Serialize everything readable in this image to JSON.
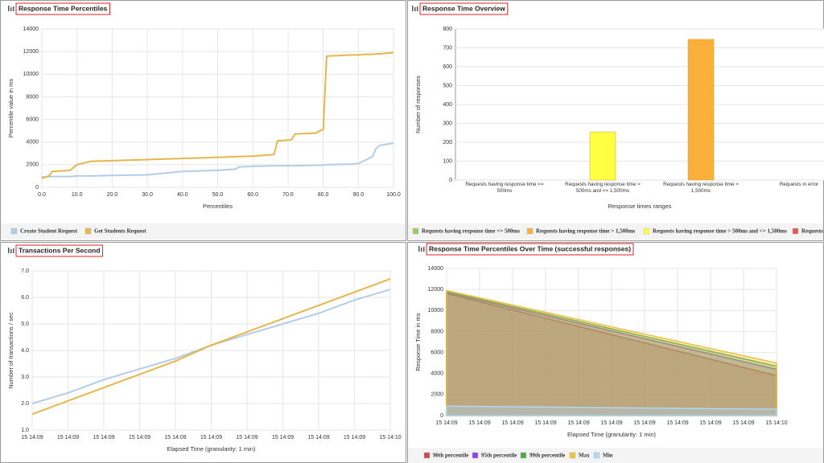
{
  "chart_data": [
    {
      "type": "line",
      "title": "Response Time Percentiles",
      "x_label": "Percentiles",
      "y_label": "Percentile value in ms",
      "x": [
        0,
        2,
        3,
        8,
        10,
        14,
        20,
        30,
        40,
        50,
        55,
        56,
        60,
        66,
        67,
        71,
        72,
        78,
        79,
        80,
        81,
        88,
        90,
        92,
        94,
        95,
        96,
        100
      ],
      "series": [
        {
          "name": "Create Student Request",
          "color": "#b3cde8",
          "values": [
            900,
            950,
            950,
            950,
            1000,
            1000,
            1050,
            1100,
            1400,
            1500,
            1600,
            1800,
            1850,
            1900,
            1900,
            1900,
            1900,
            1950,
            1950,
            1950,
            2000,
            2050,
            2100,
            2400,
            2700,
            3400,
            3700,
            3900
          ]
        },
        {
          "name": "Get Students Request",
          "color": "#e6b64a",
          "values": [
            800,
            1000,
            1400,
            1500,
            2000,
            2300,
            2350,
            2450,
            2550,
            2650,
            2700,
            2720,
            2750,
            2900,
            4100,
            4200,
            4700,
            4800,
            5000,
            5100,
            11600,
            11700,
            11700,
            11750,
            11750,
            11800,
            11800,
            11900
          ]
        }
      ],
      "xlim": [
        0,
        100
      ],
      "xticks": [
        {
          "value": 0,
          "label": "0.0"
        },
        {
          "value": 10,
          "label": "10.0"
        },
        {
          "value": 20,
          "label": "20.0"
        },
        {
          "value": 30,
          "label": "30.0"
        },
        {
          "value": 40,
          "label": "40.0"
        },
        {
          "value": 50,
          "label": "50.0"
        },
        {
          "value": 60,
          "label": "60.0"
        },
        {
          "value": 70,
          "label": "70.0"
        },
        {
          "value": 80,
          "label": "80.0"
        },
        {
          "value": 90,
          "label": "90.0"
        },
        {
          "value": 100,
          "label": "100.0"
        }
      ],
      "ylim": [
        0,
        14000
      ],
      "yticks": [
        0,
        2000,
        4000,
        6000,
        8000,
        10000,
        12000,
        14000
      ],
      "grid": true
    },
    {
      "type": "bar",
      "title": "Response Time Overview",
      "x_label": "Response times ranges",
      "y_label": "Number of responses",
      "categories": [
        "Requests having response time <= 500ms",
        "Requests having response time > 500ms and <= 1,500ms",
        "Requests having response time > 1,500ms",
        "Requests in error"
      ],
      "values": [
        0,
        255,
        745,
        0
      ],
      "colors": [
        "#9acd5a",
        "#ffff44",
        "#fbb03b",
        "#e8584a"
      ],
      "legend": [
        {
          "name": "Requests having response time <= 500ms",
          "color": "#9acd5a"
        },
        {
          "name": "Requests having response time > 1,500ms",
          "color": "#fbb03b"
        },
        {
          "name": "Requests having response time > 500ms and <= 1,500ms",
          "color": "#ffff44"
        },
        {
          "name": "Requests in error",
          "color": "#e8584a"
        }
      ],
      "ylim": [
        0,
        800
      ],
      "yticks": [
        0,
        100,
        200,
        300,
        400,
        500,
        600,
        700,
        800
      ],
      "grid": true
    },
    {
      "type": "line",
      "title": "Transactions Per Second",
      "x_label": "Elapsed Time (granularity: 1 min)",
      "y_label": "Number of transactions / sec",
      "categories": [
        "15 14:09",
        "15 14:09",
        "15 14:09",
        "15 14:09",
        "15 14:09",
        "15 14:09",
        "15 14:09",
        "15 14:09",
        "15 14:09",
        "15 14:09",
        "15 14:10"
      ],
      "series": [
        {
          "color": "#b3cde8",
          "values": [
            2.0,
            2.4,
            2.9,
            3.3,
            3.7,
            4.2,
            4.6,
            5.0,
            5.4,
            5.9,
            6.3
          ]
        },
        {
          "color": "#e6b64a",
          "values": [
            1.6,
            2.1,
            2.6,
            3.1,
            3.6,
            4.2,
            4.7,
            5.2,
            5.7,
            6.2,
            6.7
          ]
        }
      ],
      "ylim": [
        1,
        7
      ],
      "yticks": [
        {
          "value": 1,
          "label": "1.0"
        },
        {
          "value": 2,
          "label": "2.0"
        },
        {
          "value": 3,
          "label": "3.0"
        },
        {
          "value": 4,
          "label": "4.0"
        },
        {
          "value": 5,
          "label": "5.0"
        },
        {
          "value": 6,
          "label": "6.0"
        },
        {
          "value": 7,
          "label": "7.0"
        }
      ],
      "grid": true
    },
    {
      "type": "area",
      "title": "Response Time Percentiles Over Time (successful responses)",
      "x_label": "Elapsed Time (granularity: 1 min)",
      "y_label": "Response Time in ms",
      "categories": [
        "15 14:09",
        "15 14:09",
        "15 14:09",
        "15 14:09",
        "15 14:09",
        "15 14:09",
        "15 14:09",
        "15 14:09",
        "15 14:09",
        "15 14:09",
        "15 14:10"
      ],
      "series": [
        {
          "name": "90th percentile",
          "color": "#cb4b4b",
          "values": [
            11600,
            10820,
            10040,
            9260,
            8480,
            7700,
            6920,
            6140,
            5360,
            4580,
            3800
          ]
        },
        {
          "name": "95th percentile",
          "color": "#9440ed",
          "values": [
            11700,
            10970,
            10240,
            9510,
            8780,
            8050,
            7320,
            6590,
            5860,
            5130,
            4400
          ]
        },
        {
          "name": "99th percentile",
          "color": "#4da74d",
          "values": [
            11800,
            11090,
            10380,
            9670,
            8960,
            8250,
            7540,
            6830,
            6120,
            5410,
            4700
          ]
        },
        {
          "name": "Max",
          "color": "#edc240",
          "values": [
            11900,
            11210,
            10520,
            9830,
            9140,
            8450,
            7760,
            7070,
            6380,
            5690,
            5000
          ]
        },
        {
          "name": "Min",
          "color": "#afd8f8",
          "values": [
            900,
            870,
            840,
            810,
            780,
            750,
            720,
            690,
            660,
            630,
            600
          ]
        }
      ],
      "ylim": [
        0,
        14000
      ],
      "yticks": [
        0,
        2000,
        4000,
        6000,
        8000,
        10000,
        12000,
        14000
      ],
      "grid": true
    }
  ]
}
